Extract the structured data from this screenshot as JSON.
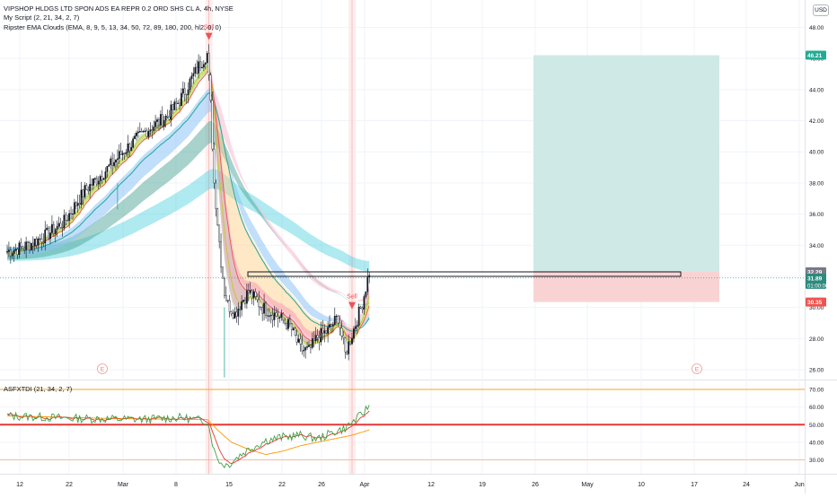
{
  "header": {
    "symbol_title": "VIPSHOP HLDGS LTD SPON ADS EA REPR 0.2 ORD SHS CL A, 4h, NYSE",
    "script_legend": "My Script (2, 21, 34, 2, 7)",
    "clouds_legend": "Ripster EMA Clouds (EMA, 8, 9, 5, 13, 34, 50, 72, 89, 180, 200, hl2, 0, 0)",
    "currency": "USD"
  },
  "indicator": {
    "label": "ASFXTDI (21, 34, 2, 7)"
  },
  "colors": {
    "up": "#26a69a",
    "down": "#ef5350",
    "sell_marker": "#ef5350",
    "take_profit_zone": "#cfe9e6",
    "stop_loss_zone": "#f9d3d3",
    "current_price": "#2c8a7e",
    "position_tag": "#ef5350",
    "target_tag": "#22ab94",
    "entry_tag": "#787b86",
    "level_70": "#f5a623",
    "level_50": "#e53935",
    "level_30": "#f4a88a",
    "tdi_green": "#43a047",
    "tdi_red": "#e53935",
    "tdi_orange": "#ff9800"
  },
  "chart_data": {
    "type": "candlestick",
    "title": "VIPSHOP HLDGS LTD SPON ADS EA REPR 0.2 ORD SHS CL A, 4h, NYSE",
    "x_tick_labels": [
      "12",
      "22",
      "Mar",
      "8",
      "15",
      "22",
      "26",
      "Apr",
      "12",
      "19",
      "26",
      "May",
      "10",
      "17",
      "24",
      "Jun"
    ],
    "y_ticks": [
      26,
      28,
      30,
      32,
      34,
      36,
      38,
      40,
      42,
      44,
      46,
      48
    ],
    "y_tick_labels": [
      "26.00",
      "28.00",
      "30.00",
      "32.00",
      "34.00",
      "36.00",
      "38.00",
      "40.00",
      "42.00",
      "44.00",
      "46.00",
      "48.00"
    ],
    "ylim": [
      25.5,
      49.5
    ],
    "price_path_keyframes": [
      [
        0,
        33.6
      ],
      [
        10,
        33.9
      ],
      [
        22,
        34.6
      ],
      [
        33,
        35.5
      ],
      [
        45,
        37.5
      ],
      [
        57,
        38.8
      ],
      [
        69,
        40.2
      ],
      [
        81,
        41.4
      ],
      [
        93,
        42.3
      ],
      [
        100,
        43.3
      ],
      [
        106,
        44.5
      ],
      [
        112,
        45.7
      ],
      [
        116,
        46.3
      ],
      [
        118,
        43.0
      ],
      [
        120,
        38.0
      ],
      [
        122,
        35.5
      ],
      [
        124,
        33.0
      ],
      [
        126,
        31.0
      ],
      [
        128,
        30.2
      ],
      [
        132,
        29.6
      ],
      [
        136,
        30.4
      ],
      [
        140,
        31.0
      ],
      [
        148,
        30.0
      ],
      [
        156,
        29.5
      ],
      [
        164,
        28.8
      ],
      [
        170,
        27.3
      ],
      [
        175,
        27.2
      ],
      [
        180,
        28.1
      ],
      [
        186,
        28.5
      ],
      [
        192,
        29.4
      ],
      [
        196,
        27.0
      ],
      [
        201,
        28.6
      ],
      [
        206,
        30.3
      ],
      [
        210,
        32.3
      ]
    ],
    "sell_signals": [
      {
        "label": "Sell",
        "price": 47.3
      },
      {
        "label": "Sell",
        "price": 30.0
      }
    ],
    "earnings_markers": [
      "E",
      "E"
    ],
    "position": {
      "target": 46.21,
      "entry": 32.29,
      "stop": 30.35
    },
    "entry_box_price": 32.2,
    "current_price": 31.89,
    "countdown": "01:00:00",
    "price_tags": {
      "target": "46.21",
      "entry": "32.29",
      "current": "31.89",
      "stop": "30.35"
    },
    "ema_clouds": [
      {
        "name": "8/9",
        "fill": "#cddc39",
        "alpha": 0.55
      },
      {
        "name": "5/13",
        "fill": "#81c784",
        "alpha": 0.35
      },
      {
        "name": "34/50",
        "fill": "#8ec5f5",
        "alpha": 0.55
      },
      {
        "name": "72/89",
        "fill": "#52a69a",
        "alpha": 0.5
      },
      {
        "name": "180/200",
        "fill": "#4dd0e1",
        "alpha": 0.45
      }
    ],
    "decline_clouds": [
      {
        "name": "fast",
        "fill": "#f8bbd0"
      },
      {
        "name": "mid",
        "fill": "#ffcc80"
      },
      {
        "name": "slow",
        "fill": "#f48fb1"
      }
    ],
    "indicator": {
      "name": "ASFXTDI (21, 34, 2, 7)",
      "y_ticks": [
        30,
        40,
        50,
        60,
        70
      ],
      "y_tick_labels": [
        "30.00",
        "40.00",
        "50.00",
        "60.00",
        "70.00"
      ],
      "ylim": [
        24.5,
        75
      ],
      "levels": [
        70,
        50,
        30
      ],
      "keyframes": [
        [
          0,
          55
        ],
        [
          40,
          53.5
        ],
        [
          80,
          53
        ],
        [
          100,
          54
        ],
        [
          116,
          52
        ],
        [
          118,
          45
        ],
        [
          120,
          35
        ],
        [
          124,
          28
        ],
        [
          128,
          27
        ],
        [
          134,
          32
        ],
        [
          140,
          36
        ],
        [
          150,
          41
        ],
        [
          160,
          43
        ],
        [
          170,
          44
        ],
        [
          180,
          42
        ],
        [
          190,
          46
        ],
        [
          196,
          48
        ],
        [
          201,
          52
        ],
        [
          206,
          56
        ],
        [
          210,
          61
        ]
      ],
      "slow_keyframes": [
        [
          0,
          55
        ],
        [
          60,
          53.5
        ],
        [
          100,
          53
        ],
        [
          116,
          53
        ],
        [
          122,
          47
        ],
        [
          130,
          40
        ],
        [
          140,
          36
        ],
        [
          150,
          33
        ],
        [
          160,
          35
        ],
        [
          170,
          38
        ],
        [
          180,
          40
        ],
        [
          190,
          42
        ],
        [
          200,
          44
        ],
        [
          210,
          47
        ]
      ]
    }
  }
}
